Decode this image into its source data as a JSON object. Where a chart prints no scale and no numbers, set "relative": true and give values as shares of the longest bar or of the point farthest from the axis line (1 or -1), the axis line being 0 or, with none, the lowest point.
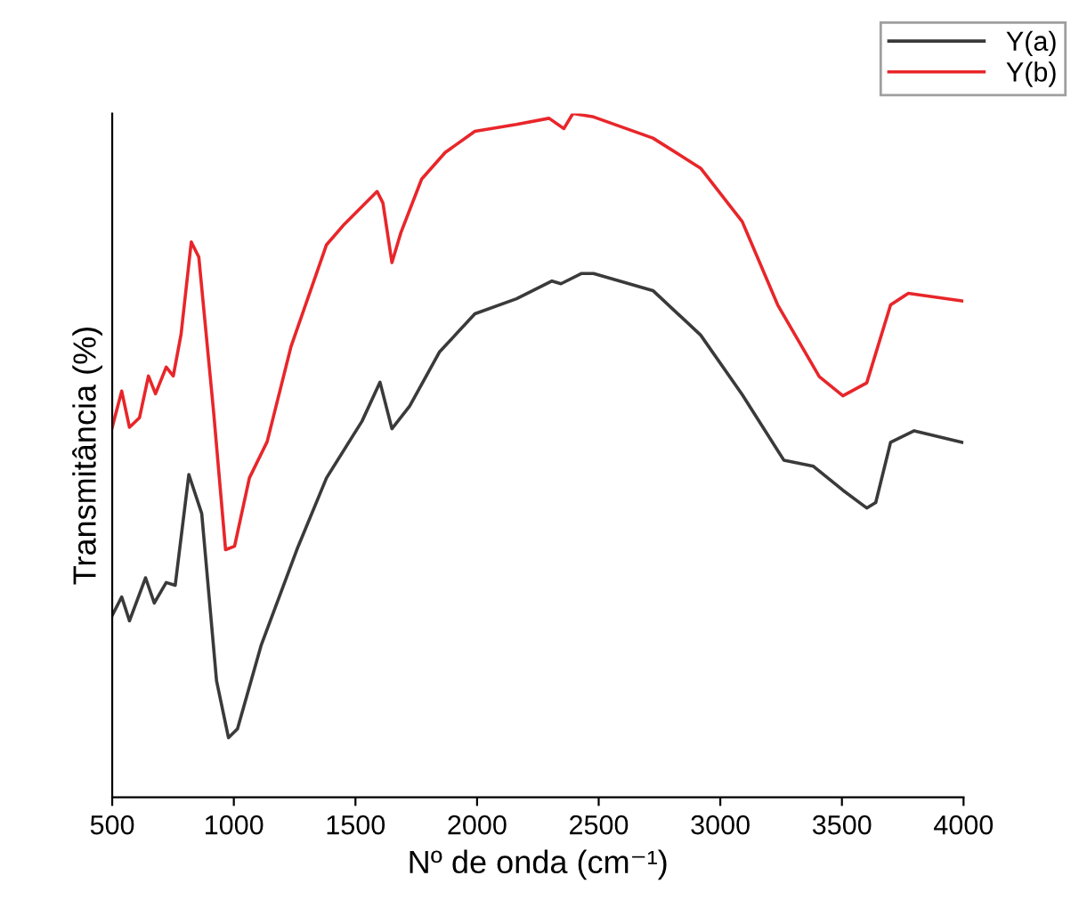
{
  "chart_data": {
    "type": "line",
    "xlabel": "Nº de onda (cm⁻¹)",
    "ylabel": "Transmitância (%)",
    "relative": true,
    "xlim": [
      500,
      4000
    ],
    "xticks": [
      500,
      1000,
      1500,
      2000,
      2500,
      3000,
      3500,
      4000
    ],
    "grid": false,
    "legend": "top right",
    "marker": "none",
    "line_style": "solid",
    "series": [
      {
        "name": "Y(a)",
        "color": "#3a3a3a",
        "x": [
          500,
          539,
          571,
          637,
          673,
          722,
          759,
          815,
          868,
          929,
          978,
          1015,
          1113,
          1259,
          1381,
          1527,
          1601,
          1650,
          1723,
          1845,
          1991,
          2162,
          2308,
          2345,
          2430,
          2479,
          2723,
          2919,
          3090,
          3261,
          3383,
          3504,
          3602,
          3639,
          3700,
          3797,
          3993
        ],
        "values": [
          0.266,
          0.293,
          0.258,
          0.321,
          0.284,
          0.314,
          0.31,
          0.472,
          0.415,
          0.17,
          0.087,
          0.1,
          0.223,
          0.362,
          0.467,
          0.55,
          0.607,
          0.539,
          0.572,
          0.651,
          0.707,
          0.729,
          0.755,
          0.751,
          0.766,
          0.766,
          0.741,
          0.676,
          0.589,
          0.493,
          0.484,
          0.449,
          0.423,
          0.431,
          0.519,
          0.536,
          0.519
        ]
      },
      {
        "name": "Y(b)",
        "color": "#e8262a",
        "x": [
          500,
          539,
          571,
          612,
          649,
          678,
          722,
          751,
          783,
          825,
          856,
          917,
          966,
          1003,
          1064,
          1137,
          1235,
          1381,
          1454,
          1589,
          1613,
          1650,
          1686,
          1772,
          1869,
          1991,
          2162,
          2296,
          2357,
          2394,
          2479,
          2723,
          2919,
          3090,
          3236,
          3407,
          3504,
          3602,
          3700,
          3773,
          3993
        ],
        "values": [
          0.541,
          0.594,
          0.541,
          0.555,
          0.616,
          0.59,
          0.629,
          0.616,
          0.677,
          0.812,
          0.79,
          0.563,
          0.362,
          0.367,
          0.467,
          0.52,
          0.659,
          0.808,
          0.838,
          0.886,
          0.869,
          0.782,
          0.825,
          0.904,
          0.943,
          0.974,
          0.984,
          0.993,
          0.978,
          1,
          0.995,
          0.964,
          0.92,
          0.842,
          0.72,
          0.615,
          0.587,
          0.606,
          0.72,
          0.737,
          0.726
        ]
      }
    ]
  }
}
